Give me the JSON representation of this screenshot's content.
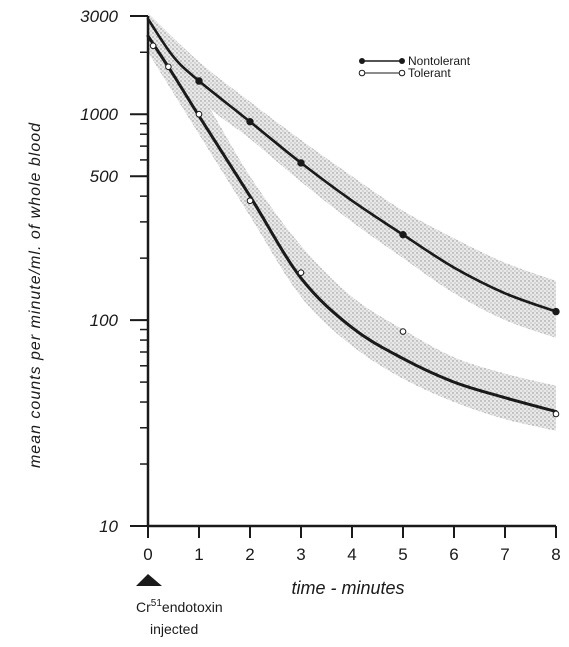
{
  "chart_data": {
    "type": "line",
    "title": "",
    "xlabel": "time - minutes",
    "ylabel": "mean counts per minute/ml. of whole blood",
    "x_scale": "linear",
    "y_scale": "log",
    "xlim": [
      0,
      8
    ],
    "ylim": [
      10,
      3000
    ],
    "x_ticks": [
      0,
      1,
      2,
      3,
      4,
      5,
      6,
      7,
      8
    ],
    "x_tick_labels": [
      "0",
      "1",
      "2",
      "3",
      "4",
      "5",
      "6",
      "7",
      "8"
    ],
    "y_tick_labels": [
      {
        "value": 3000,
        "label": "3000"
      },
      {
        "value": 1000,
        "label": "1000"
      },
      {
        "value": 500,
        "label": "500"
      },
      {
        "value": 100,
        "label": "100"
      },
      {
        "value": 10,
        "label": "10"
      }
    ],
    "grid": false,
    "legend_position": "top-right",
    "series": [
      {
        "name": "Nontolerant",
        "marker": "filled-circle",
        "color": "#1a1a1a",
        "points": [
          {
            "x": 0,
            "y": 2900
          },
          {
            "x": 0.5,
            "y": 1900
          },
          {
            "x": 1,
            "y": 1450
          },
          {
            "x": 2,
            "y": 920
          },
          {
            "x": 3,
            "y": 580
          },
          {
            "x": 4,
            "y": 380
          },
          {
            "x": 5,
            "y": 260
          },
          {
            "x": 6,
            "y": 180
          },
          {
            "x": 7,
            "y": 135
          },
          {
            "x": 8,
            "y": 110
          }
        ],
        "band_upper": [
          {
            "x": 0,
            "y": 3100
          },
          {
            "x": 1,
            "y": 1800
          },
          {
            "x": 2,
            "y": 1150
          },
          {
            "x": 3,
            "y": 750
          },
          {
            "x": 4,
            "y": 500
          },
          {
            "x": 5,
            "y": 340
          },
          {
            "x": 6,
            "y": 250
          },
          {
            "x": 7,
            "y": 190
          },
          {
            "x": 8,
            "y": 155
          }
        ],
        "band_lower": [
          {
            "x": 0,
            "y": 2600
          },
          {
            "x": 1,
            "y": 1200
          },
          {
            "x": 2,
            "y": 760
          },
          {
            "x": 3,
            "y": 470
          },
          {
            "x": 4,
            "y": 300
          },
          {
            "x": 5,
            "y": 200
          },
          {
            "x": 6,
            "y": 135
          },
          {
            "x": 7,
            "y": 100
          },
          {
            "x": 8,
            "y": 82
          }
        ],
        "observed_points": [
          {
            "x": 1,
            "y": 1450
          },
          {
            "x": 2,
            "y": 920
          },
          {
            "x": 3,
            "y": 580
          },
          {
            "x": 5,
            "y": 260
          },
          {
            "x": 8,
            "y": 110
          }
        ]
      },
      {
        "name": "Tolerant",
        "marker": "open-circle",
        "color": "#1a1a1a",
        "points": [
          {
            "x": 0,
            "y": 2400
          },
          {
            "x": 0.5,
            "y": 1550
          },
          {
            "x": 1,
            "y": 980
          },
          {
            "x": 2,
            "y": 400
          },
          {
            "x": 3,
            "y": 160
          },
          {
            "x": 4,
            "y": 92
          },
          {
            "x": 5,
            "y": 65
          },
          {
            "x": 6,
            "y": 50
          },
          {
            "x": 7,
            "y": 42
          },
          {
            "x": 8,
            "y": 36
          }
        ],
        "band_upper": [
          {
            "x": 0,
            "y": 2900
          },
          {
            "x": 1,
            "y": 1300
          },
          {
            "x": 2,
            "y": 500
          },
          {
            "x": 3,
            "y": 230
          },
          {
            "x": 4,
            "y": 130
          },
          {
            "x": 5,
            "y": 90
          },
          {
            "x": 6,
            "y": 66
          },
          {
            "x": 7,
            "y": 55
          },
          {
            "x": 8,
            "y": 48
          }
        ],
        "band_lower": [
          {
            "x": 0,
            "y": 2000
          },
          {
            "x": 1,
            "y": 800
          },
          {
            "x": 2,
            "y": 320
          },
          {
            "x": 3,
            "y": 130
          },
          {
            "x": 4,
            "y": 75
          },
          {
            "x": 5,
            "y": 52
          },
          {
            "x": 6,
            "y": 40
          },
          {
            "x": 7,
            "y": 33
          },
          {
            "x": 8,
            "y": 29
          }
        ],
        "observed_points": [
          {
            "x": 0.1,
            "y": 2150
          },
          {
            "x": 0.4,
            "y": 1700
          },
          {
            "x": 1,
            "y": 1000
          },
          {
            "x": 2,
            "y": 380
          },
          {
            "x": 3,
            "y": 170
          },
          {
            "x": 5,
            "y": 88
          },
          {
            "x": 8,
            "y": 35
          }
        ]
      }
    ],
    "annotations": [
      {
        "text_sup_prefix": "Cr",
        "sup": "51",
        "text": "endotoxin",
        "line2": "injected",
        "at_x": 0
      }
    ]
  }
}
